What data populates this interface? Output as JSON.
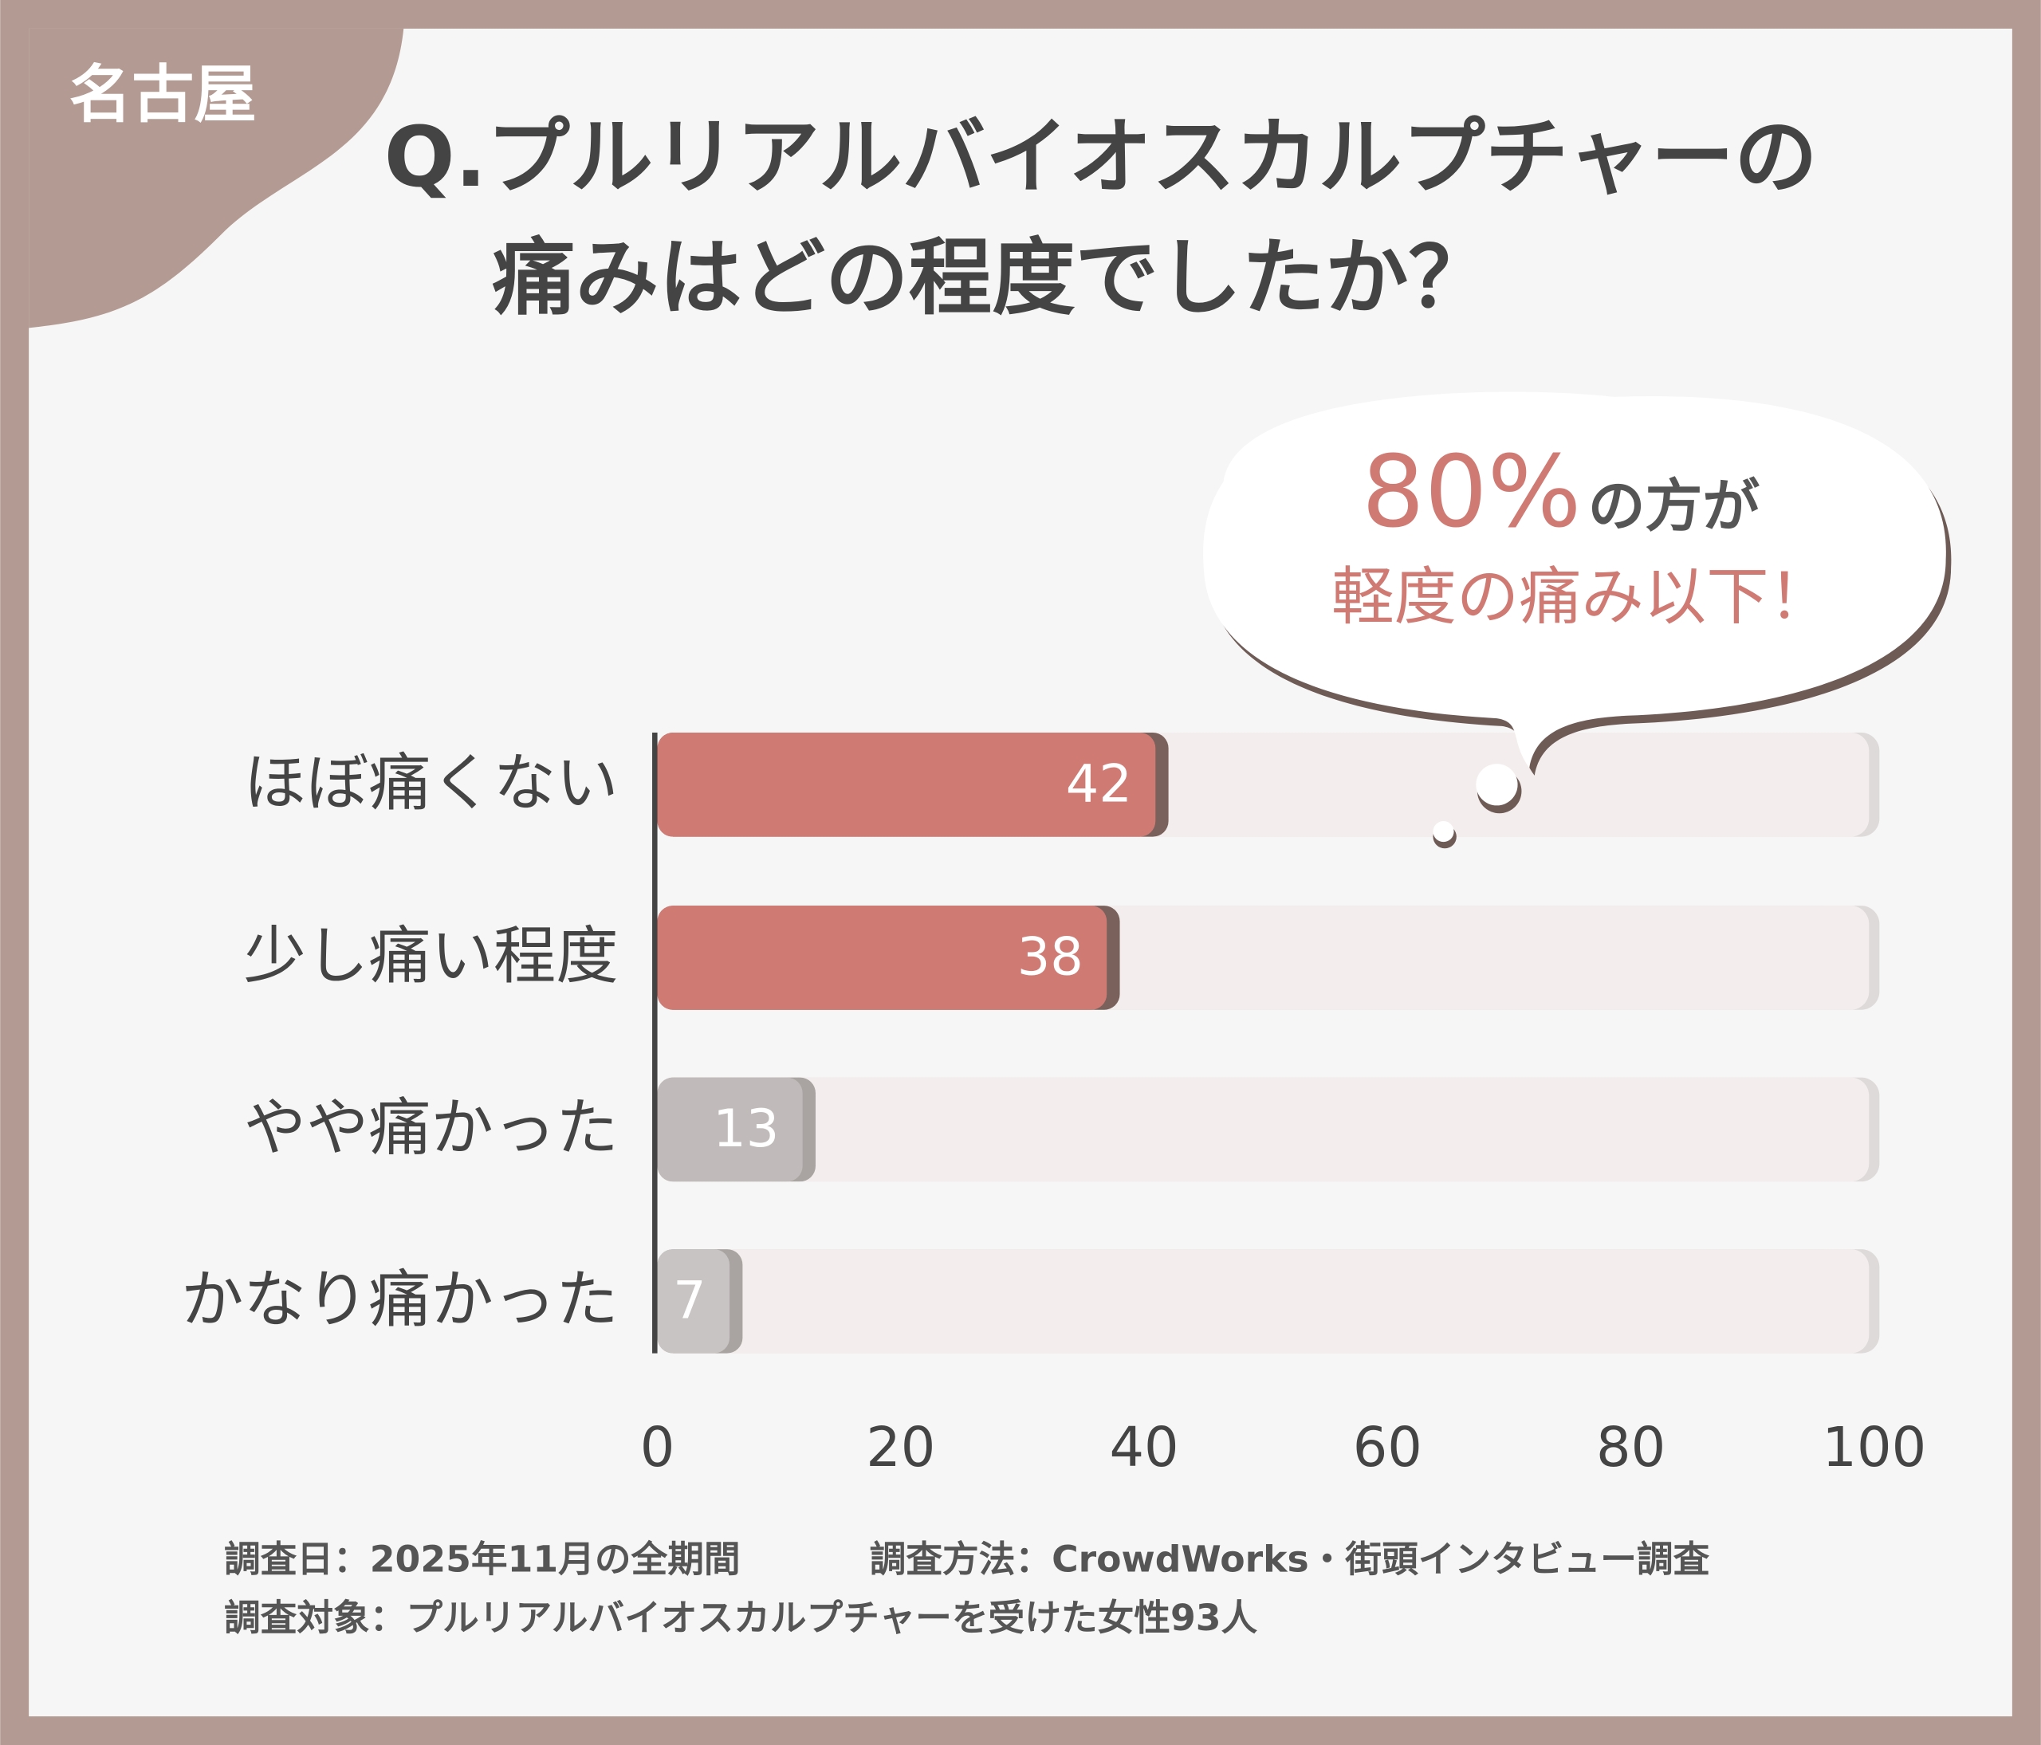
{
  "chart_data": {
    "type": "barh",
    "tag": "名古屋",
    "title_lines": [
      "Q.プルリアルバイオスカルプチャーの",
      "痛みはどの程度でしたか？"
    ],
    "callout": {
      "big": "80%",
      "small": "の方が",
      "line2": "軽度の痛み以下！"
    },
    "categories": [
      "ほぼ痛くない",
      "少し痛い程度",
      "やや痛かった",
      "かなり痛かった"
    ],
    "values": [
      42,
      38,
      13,
      7
    ],
    "colors": [
      "#d07a74",
      "#d07a74",
      "#c0bbba",
      "#c8c4c3"
    ],
    "xlim": [
      0,
      100
    ],
    "xticks": [
      0,
      20,
      40,
      60,
      80,
      100
    ],
    "notes": [
      "調査日：2025年11月の全期間",
      "調査方法：CrowdWorks・街頭インタビュー調査",
      "調査対象：プルリアルバイオスカルプチャーを受けた女性93人"
    ]
  }
}
